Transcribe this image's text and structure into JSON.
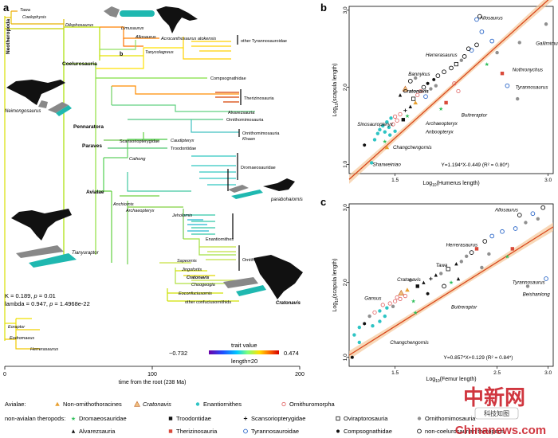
{
  "panels": {
    "a": "a",
    "b": "b",
    "c": "c"
  },
  "tree": {
    "clade_labels": [
      "Neotheropoda",
      "Coelurosauria",
      "Pennaratora",
      "Paraves",
      "Avialae"
    ],
    "taxa": [
      {
        "label": "Tawa",
        "italic": true
      },
      {
        "label": "Coelophysis",
        "italic": true
      },
      {
        "label": "Dilophosaurus",
        "italic": true
      },
      {
        "label": "Limusaurus",
        "italic": true
      },
      {
        "label": "Acrocanthosaurus atokensis",
        "italic": true
      },
      {
        "label": "Allosaurus",
        "italic": true
      },
      {
        "label": "Tanycolagreus",
        "italic": true
      },
      {
        "label": "other Tyrannosauroidae",
        "italic": false
      },
      {
        "label": "Compsognathidae",
        "italic": false
      },
      {
        "label": "Therizinosauria",
        "italic": false
      },
      {
        "label": "Alvarezsauria",
        "italic": false
      },
      {
        "label": "Ornithomimosauria",
        "italic": false
      },
      {
        "label": "Ornithomimosauria",
        "italic": false
      },
      {
        "label": "Caudipteryx",
        "italic": true
      },
      {
        "label": "Khaan",
        "italic": true
      },
      {
        "label": "Scansoriopterygidae",
        "italic": false
      },
      {
        "label": "Troodontidae",
        "italic": false
      },
      {
        "label": "Caihong",
        "italic": true
      },
      {
        "label": "Dromaeosauridae",
        "italic": false
      },
      {
        "label": "Anchiornis",
        "italic": true
      },
      {
        "label": "Archaeopteryx",
        "italic": true
      },
      {
        "label": "Jeholornis",
        "italic": true
      },
      {
        "label": "Enantiornithes",
        "italic": false
      },
      {
        "label": "Ornithuromorpha",
        "italic": false
      },
      {
        "label": "Sapeornis",
        "italic": true
      },
      {
        "label": "Jingofortis",
        "italic": true
      },
      {
        "label": "Cratonavis",
        "italic": true
      },
      {
        "label": "Choogeogia",
        "italic": true
      },
      {
        "label": "Eoconfuciusornis",
        "italic": true
      },
      {
        "label": "other confuciusornithids",
        "italic": false
      },
      {
        "label": "Eoraptor",
        "italic": true
      },
      {
        "label": "Eodromaeus",
        "italic": true
      },
      {
        "label": "Herrerasaurus",
        "italic": true
      }
    ],
    "silhouette_labels": {
      "neimongosaurus": "Neimongosaurus",
      "tianyuraptor": "Tianyuraptor",
      "parabohaiornis": "parabohaiornis",
      "cratonavis": "Cratonavis"
    },
    "stats": {
      "line1_prefix": "K = 0.189, ",
      "line1_p": "p",
      "line1_suffix": " = 0.01",
      "line2_prefix": "lambda = 0.947, ",
      "line2_p": "p",
      "line2_suffix": " = 1.4968e-22"
    },
    "legend": {
      "min": "−0.732",
      "max": "0.474",
      "title": "trait value",
      "length": "length=20",
      "colors": [
        "#6a00a8",
        "#1f4fff",
        "#00c8ff",
        "#7dff7a",
        "#ffe100",
        "#ff6a00",
        "#d40000"
      ]
    },
    "time_axis": {
      "ticks": [
        "0",
        "100",
        "200"
      ],
      "label": "time from the root (238 Ma)"
    }
  },
  "chart_data": [
    {
      "panel": "b",
      "type": "scatter",
      "xlabel": "Log10(Humerus length)",
      "ylabel": "Log10(scapula length)",
      "xticks": [
        "1.5",
        "3.0"
      ],
      "yticks": [
        "1.0",
        "2.0",
        "3.0"
      ],
      "xlim": [
        1.05,
        3.05
      ],
      "ylim": [
        0.88,
        3.05
      ],
      "fit": {
        "slope": 1.194,
        "intercept": -0.449
      },
      "equation": "Y=1.194*X-0.449  (R² = 0.80*)",
      "labels": [
        {
          "text": "Allosaurus",
          "x": 2.33,
          "y": 2.88
        },
        {
          "text": "Gallimimus",
          "x": 2.88,
          "y": 2.55
        },
        {
          "text": "Herrerasaurus",
          "x": 1.8,
          "y": 2.4
        },
        {
          "text": "Nothronychus",
          "x": 2.65,
          "y": 2.21
        },
        {
          "text": "Tyrannosaurus",
          "x": 2.68,
          "y": 1.98
        },
        {
          "text": "Bannykus",
          "x": 1.63,
          "y": 2.15
        },
        {
          "text": "Cratonavis",
          "x": 1.58,
          "y": 1.93
        },
        {
          "text": "Sinosauropteryx",
          "x": 1.13,
          "y": 1.5
        },
        {
          "text": "Archaeopteryx",
          "x": 1.8,
          "y": 1.51
        },
        {
          "text": "Buitreraptor",
          "x": 2.15,
          "y": 1.62
        },
        {
          "text": "Anboopteryx",
          "x": 1.8,
          "y": 1.4
        },
        {
          "text": "Changchengornis",
          "x": 1.48,
          "y": 1.2
        },
        {
          "text": "Shanweiniao",
          "x": 1.28,
          "y": 0.98
        }
      ],
      "points": [
        {
          "x": 1.27,
          "y": 1.02,
          "m": "enan"
        },
        {
          "x": 1.2,
          "y": 1.25,
          "m": "hex"
        },
        {
          "x": 1.3,
          "y": 1.32,
          "m": "enan"
        },
        {
          "x": 1.33,
          "y": 1.4,
          "m": "enan"
        },
        {
          "x": 1.35,
          "y": 1.45,
          "m": "enan"
        },
        {
          "x": 1.38,
          "y": 1.5,
          "m": "enan"
        },
        {
          "x": 1.4,
          "y": 1.42,
          "m": "enan"
        },
        {
          "x": 1.42,
          "y": 1.55,
          "m": "enan"
        },
        {
          "x": 1.44,
          "y": 1.48,
          "m": "enan"
        },
        {
          "x": 1.46,
          "y": 1.6,
          "m": "enan"
        },
        {
          "x": 1.48,
          "y": 1.52,
          "m": "ornith"
        },
        {
          "x": 1.5,
          "y": 1.62,
          "m": "ornith"
        },
        {
          "x": 1.52,
          "y": 1.57,
          "m": "ornith"
        },
        {
          "x": 1.55,
          "y": 1.65,
          "m": "ornith"
        },
        {
          "x": 1.45,
          "y": 1.38,
          "m": "enan"
        },
        {
          "x": 1.5,
          "y": 1.43,
          "m": "enan"
        },
        {
          "x": 1.4,
          "y": 1.3,
          "m": "dromae"
        },
        {
          "x": 1.58,
          "y": 1.58,
          "m": "trood"
        },
        {
          "x": 1.6,
          "y": 1.7,
          "m": "scans"
        },
        {
          "x": 1.62,
          "y": 1.63,
          "m": "dromae"
        },
        {
          "x": 1.65,
          "y": 1.75,
          "m": "alvar"
        },
        {
          "x": 1.68,
          "y": 1.85,
          "m": "ovirap"
        },
        {
          "x": 1.7,
          "y": 1.8,
          "m": "nonornitho"
        },
        {
          "x": 1.72,
          "y": 1.9,
          "m": "ornith"
        },
        {
          "x": 1.75,
          "y": 1.95,
          "m": "ornith"
        },
        {
          "x": 1.78,
          "y": 2.0,
          "m": "otherth"
        },
        {
          "x": 1.8,
          "y": 1.88,
          "m": "tyran"
        },
        {
          "x": 1.82,
          "y": 2.05,
          "m": "compso"
        },
        {
          "x": 1.85,
          "y": 1.98,
          "m": "ornimi"
        },
        {
          "x": 1.88,
          "y": 2.1,
          "m": "hex"
        },
        {
          "x": 1.9,
          "y": 2.02,
          "m": "ornimi"
        },
        {
          "x": 1.92,
          "y": 2.15,
          "m": "otherth"
        },
        {
          "x": 1.6,
          "y": 1.98,
          "m": "cratonavis"
        },
        {
          "x": 1.55,
          "y": 1.9,
          "m": "tri"
        },
        {
          "x": 1.65,
          "y": 2.08,
          "m": "otherth"
        },
        {
          "x": 1.7,
          "y": 2.12,
          "m": "ornimi"
        },
        {
          "x": 1.95,
          "y": 1.72,
          "m": "dromae"
        },
        {
          "x": 2.0,
          "y": 1.8,
          "m": "theriz"
        },
        {
          "x": 2.05,
          "y": 2.25,
          "m": "otherth"
        },
        {
          "x": 2.1,
          "y": 2.3,
          "m": "ovirap"
        },
        {
          "x": 2.15,
          "y": 2.35,
          "m": "ornimi"
        },
        {
          "x": 2.18,
          "y": 2.4,
          "m": "otherth"
        },
        {
          "x": 2.25,
          "y": 2.48,
          "m": "tyran"
        },
        {
          "x": 2.3,
          "y": 2.55,
          "m": "otherth"
        },
        {
          "x": 2.22,
          "y": 2.5,
          "m": "otherth"
        },
        {
          "x": 2.35,
          "y": 2.72,
          "m": "tyran"
        },
        {
          "x": 2.3,
          "y": 2.88,
          "m": "tyran"
        },
        {
          "x": 2.33,
          "y": 2.92,
          "m": "otherth"
        },
        {
          "x": 2.5,
          "y": 2.45,
          "m": "ornimi"
        },
        {
          "x": 2.55,
          "y": 2.18,
          "m": "theriz"
        },
        {
          "x": 2.6,
          "y": 2.02,
          "m": "tyran"
        },
        {
          "x": 2.7,
          "y": 1.85,
          "m": "ornimi"
        },
        {
          "x": 2.72,
          "y": 2.58,
          "m": "ornimi"
        },
        {
          "x": 2.98,
          "y": 2.82,
          "m": "ornimi"
        },
        {
          "x": 2.45,
          "y": 2.6,
          "m": "tyran"
        },
        {
          "x": 2.12,
          "y": 1.95,
          "m": "ornith"
        },
        {
          "x": 2.4,
          "y": 2.3,
          "m": "dromae"
        },
        {
          "x": 2.08,
          "y": 2.05,
          "m": "ornith"
        },
        {
          "x": 1.42,
          "y": 1.22,
          "m": "nonornitho"
        },
        {
          "x": 1.98,
          "y": 2.2,
          "m": "otherth"
        }
      ]
    },
    {
      "panel": "c",
      "type": "scatter",
      "xlabel": "Log10(Femur length)",
      "ylabel": "Log10(scapula length)",
      "xticks": [
        "1.5",
        "2.5",
        "3.0"
      ],
      "yticks": [
        "1.0",
        "2.0",
        "3.0"
      ],
      "xlim": [
        1.05,
        3.05
      ],
      "ylim": [
        0.88,
        3.05
      ],
      "fit": {
        "slope": 0.857,
        "intercept": 0.129
      },
      "equation": "Y=0.857*X+0.129  (R² = 0.84*)",
      "labels": [
        {
          "text": "Allosaurus",
          "x": 2.48,
          "y": 2.95
        },
        {
          "text": "Herrerasaurus",
          "x": 2.0,
          "y": 2.48
        },
        {
          "text": "Tawa",
          "x": 1.9,
          "y": 2.21
        },
        {
          "text": "Cratonavis",
          "x": 1.52,
          "y": 2.02
        },
        {
          "text": "Tyrannosaurus",
          "x": 2.65,
          "y": 1.98
        },
        {
          "text": "Gansus",
          "x": 1.2,
          "y": 1.77
        },
        {
          "text": "Buitreraptor",
          "x": 2.05,
          "y": 1.65
        },
        {
          "text": "Beishanlong",
          "x": 2.75,
          "y": 1.82
        },
        {
          "text": "Changchengornis",
          "x": 1.45,
          "y": 1.18
        }
      ],
      "points": [
        {
          "x": 1.1,
          "y": 1.3,
          "m": "enan"
        },
        {
          "x": 1.15,
          "y": 1.4,
          "m": "enan"
        },
        {
          "x": 1.2,
          "y": 1.45,
          "m": "hex"
        },
        {
          "x": 1.25,
          "y": 1.55,
          "m": "ornimi"
        },
        {
          "x": 1.3,
          "y": 1.6,
          "m": "ornith"
        },
        {
          "x": 1.35,
          "y": 1.62,
          "m": "enan"
        },
        {
          "x": 1.38,
          "y": 1.7,
          "m": "ornith"
        },
        {
          "x": 1.42,
          "y": 1.66,
          "m": "enan"
        },
        {
          "x": 1.45,
          "y": 1.72,
          "m": "ornith"
        },
        {
          "x": 1.48,
          "y": 1.68,
          "m": "ornimi"
        },
        {
          "x": 1.5,
          "y": 1.75,
          "m": "ornith"
        },
        {
          "x": 1.52,
          "y": 1.8,
          "m": "ornith"
        },
        {
          "x": 1.56,
          "y": 1.86,
          "m": "cratonavis"
        },
        {
          "x": 1.55,
          "y": 1.78,
          "m": "ornith"
        },
        {
          "x": 1.6,
          "y": 1.82,
          "m": "ornith"
        },
        {
          "x": 1.35,
          "y": 1.48,
          "m": "enan"
        },
        {
          "x": 1.4,
          "y": 1.55,
          "m": "enan"
        },
        {
          "x": 1.28,
          "y": 1.42,
          "m": "enan"
        },
        {
          "x": 1.62,
          "y": 1.9,
          "m": "nonornitho"
        },
        {
          "x": 1.68,
          "y": 1.75,
          "m": "dromae"
        },
        {
          "x": 1.72,
          "y": 1.95,
          "m": "trood"
        },
        {
          "x": 1.78,
          "y": 2.0,
          "m": "alvar"
        },
        {
          "x": 1.82,
          "y": 1.85,
          "m": "hex"
        },
        {
          "x": 1.85,
          "y": 2.05,
          "m": "scans"
        },
        {
          "x": 1.9,
          "y": 2.1,
          "m": "tri"
        },
        {
          "x": 1.95,
          "y": 2.12,
          "m": "ornimi"
        },
        {
          "x": 1.98,
          "y": 1.95,
          "m": "otherth"
        },
        {
          "x": 2.02,
          "y": 2.18,
          "m": "ovirap"
        },
        {
          "x": 2.05,
          "y": 2.0,
          "m": "dromae"
        },
        {
          "x": 2.1,
          "y": 2.25,
          "m": "tri"
        },
        {
          "x": 2.15,
          "y": 2.28,
          "m": "ornimi"
        },
        {
          "x": 2.2,
          "y": 2.35,
          "m": "ornimi"
        },
        {
          "x": 2.25,
          "y": 2.4,
          "m": "otherth"
        },
        {
          "x": 2.3,
          "y": 2.45,
          "m": "theriz"
        },
        {
          "x": 2.38,
          "y": 2.55,
          "m": "otherth"
        },
        {
          "x": 2.42,
          "y": 2.38,
          "m": "ornimi"
        },
        {
          "x": 2.45,
          "y": 2.62,
          "m": "tyran"
        },
        {
          "x": 2.55,
          "y": 2.68,
          "m": "tyran"
        },
        {
          "x": 2.6,
          "y": 2.35,
          "m": "dromae"
        },
        {
          "x": 2.65,
          "y": 2.45,
          "m": "theriz"
        },
        {
          "x": 2.68,
          "y": 2.72,
          "m": "tyran"
        },
        {
          "x": 2.72,
          "y": 2.9,
          "m": "otherth"
        },
        {
          "x": 2.78,
          "y": 2.8,
          "m": "ornimi"
        },
        {
          "x": 2.85,
          "y": 2.92,
          "m": "tyran"
        },
        {
          "x": 2.95,
          "y": 3.0,
          "m": "otherth"
        },
        {
          "x": 2.98,
          "y": 2.05,
          "m": "tyran"
        },
        {
          "x": 2.8,
          "y": 1.95,
          "m": "ornimi"
        },
        {
          "x": 2.9,
          "y": 2.85,
          "m": "ornimi"
        },
        {
          "x": 1.08,
          "y": 1.0,
          "m": "hex"
        },
        {
          "x": 1.15,
          "y": 1.2,
          "m": "enan"
        },
        {
          "x": 1.65,
          "y": 2.03,
          "m": "ornimi"
        },
        {
          "x": 1.7,
          "y": 1.6,
          "m": "dromae"
        },
        {
          "x": 2.12,
          "y": 2.05,
          "m": "alvar"
        },
        {
          "x": 2.35,
          "y": 2.2,
          "m": "ornimi"
        }
      ]
    }
  ],
  "legend": {
    "row1_title": "Avialae:",
    "row1": [
      {
        "label": "Non-ornithothoracines",
        "italic": false
      },
      {
        "label": "Cratonavis",
        "italic": true
      },
      {
        "label": "Enantiornithes",
        "italic": false
      },
      {
        "label": "Ornithuromorpha",
        "italic": false
      }
    ],
    "row2_title": "non-avialan theropods:",
    "row2": [
      {
        "label": "Dromaeosauridae"
      },
      {
        "label": "Troodontidae"
      },
      {
        "label": "Scansoriopterygidae"
      },
      {
        "label": "Oviraptorosauria"
      },
      {
        "label": "Ornithomimosauria"
      }
    ],
    "row3": [
      {
        "label": "Alvarezsauria"
      },
      {
        "label": "Therizinosauria"
      },
      {
        "label": "Tyrannosauroidae"
      },
      {
        "label": "Compsognathidae"
      },
      {
        "label": "non-coelurosaurian theropods"
      }
    ]
  },
  "watermark": {
    "cn_text": "中新网",
    "site": "Chinanews.com",
    "badge": "科技知图"
  }
}
